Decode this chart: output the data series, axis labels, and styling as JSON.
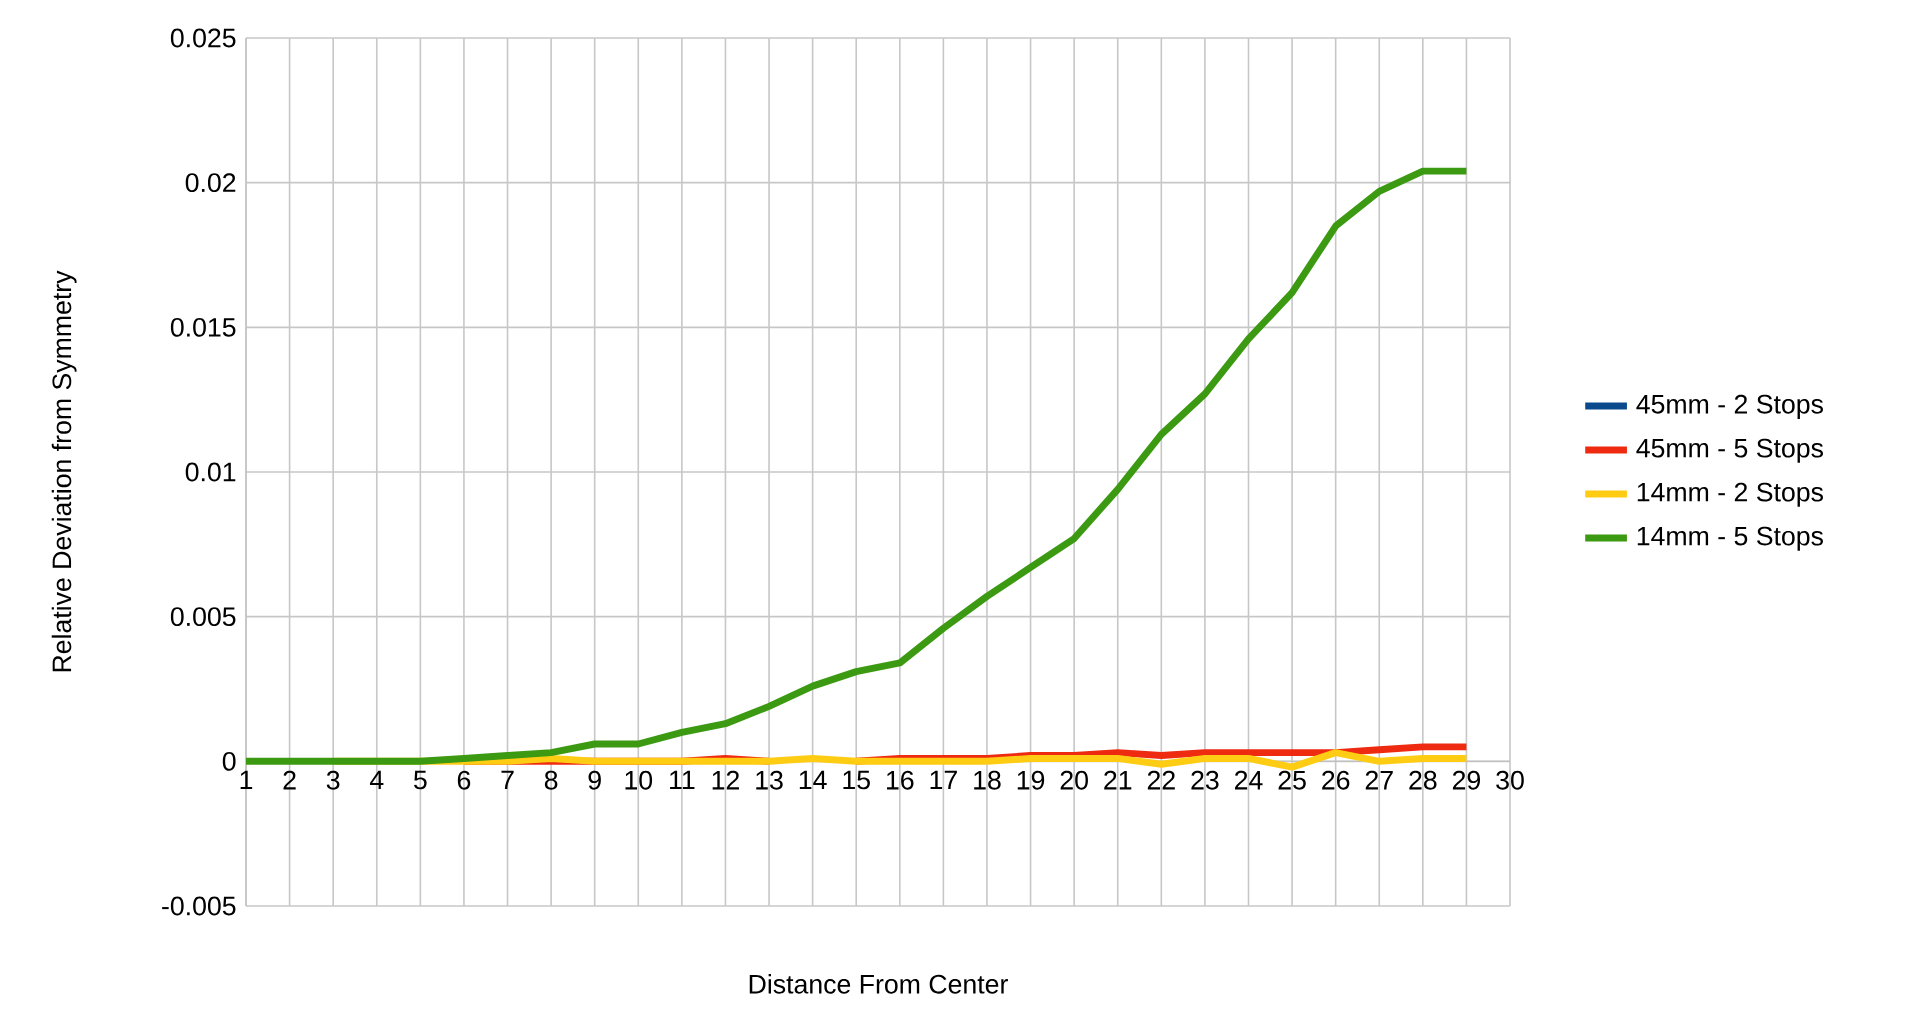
{
  "chart_data": {
    "type": "line",
    "xlabel": "Distance From Center",
    "ylabel": "Relative Deviation from Symmetry",
    "x": [
      1,
      2,
      3,
      4,
      5,
      6,
      7,
      8,
      9,
      10,
      11,
      12,
      13,
      14,
      15,
      16,
      17,
      18,
      19,
      20,
      21,
      22,
      23,
      24,
      25,
      26,
      27,
      28,
      29
    ],
    "series": [
      {
        "name": "45mm - 2 Stops",
        "color": "#0a4a8c",
        "values": [
          null,
          null,
          null,
          null,
          null,
          null,
          null,
          null,
          null,
          null,
          null,
          null,
          null,
          null,
          null,
          null,
          null,
          null,
          null,
          null,
          null,
          null,
          null,
          null,
          null,
          null,
          null,
          null,
          null
        ]
      },
      {
        "name": "45mm - 5 Stops",
        "color": "#ee2a10",
        "values": [
          null,
          null,
          null,
          null,
          null,
          0,
          0,
          0,
          0,
          0,
          0,
          0.0001,
          0,
          null,
          0,
          0.0001,
          0.0001,
          0.0001,
          0.0002,
          0.0002,
          0.0003,
          0.0002,
          0.0003,
          0.0003,
          0.0003,
          0.0003,
          0.0004,
          0.0005,
          0.0005
        ]
      },
      {
        "name": "14mm - 2 Stops",
        "color": "#ffcc14",
        "values": [
          null,
          null,
          0,
          0,
          0,
          0,
          0,
          0.0001,
          0,
          0,
          0,
          0,
          0,
          0.0001,
          0,
          0,
          0,
          0,
          0.0001,
          0.0001,
          0.0001,
          -0.0001,
          0.0001,
          0.0001,
          -0.0002,
          0.0003,
          0,
          0.0001,
          0.0001
        ]
      },
      {
        "name": "14mm - 5 Stops",
        "color": "#3c9a12",
        "values": [
          0,
          0,
          0,
          0,
          0,
          0.0001,
          0.0002,
          0.0003,
          0.0006,
          0.0006,
          0.001,
          0.0013,
          0.0019,
          0.0026,
          0.0031,
          0.0034,
          0.0046,
          0.0057,
          0.0067,
          0.0077,
          0.0094,
          0.0113,
          0.0127,
          0.0146,
          0.0162,
          0.0185,
          0.0197,
          0.0204,
          0.0204
        ]
      }
    ],
    "xlim": [
      1,
      30
    ],
    "xticks": [
      1,
      2,
      3,
      4,
      5,
      6,
      7,
      8,
      9,
      10,
      11,
      12,
      13,
      14,
      15,
      16,
      17,
      18,
      19,
      20,
      21,
      22,
      23,
      24,
      25,
      26,
      27,
      28,
      29,
      30
    ],
    "ylim": [
      -0.005,
      0.025
    ],
    "yticks": [
      -0.005,
      0,
      0.005,
      0.01,
      0.015,
      0.02,
      0.025
    ],
    "grid": true,
    "legend": "right",
    "marker": "none",
    "line_style": "solid"
  }
}
